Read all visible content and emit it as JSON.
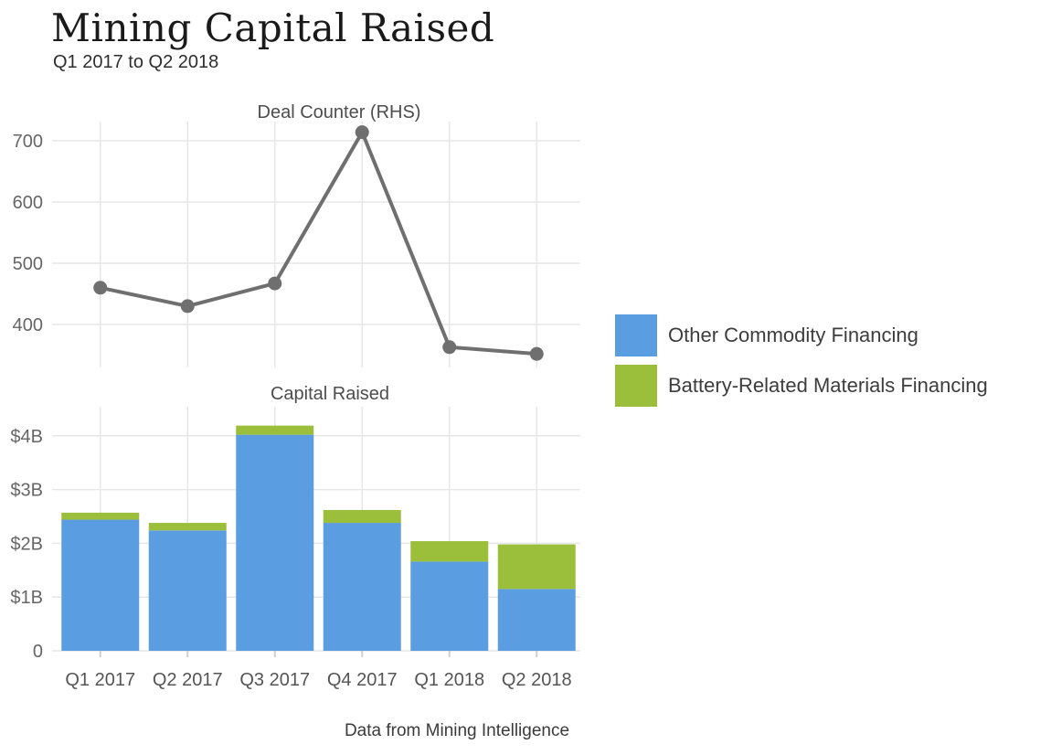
{
  "header": {
    "title": "Mining Capital Raised",
    "subtitle": "Q1 2017 to Q2 2018"
  },
  "caption": "Data from Mining Intelligence",
  "colors": {
    "other_commodity": "#5B9DE1",
    "battery_materials": "#9BBF3B",
    "line_gray": "#6F6F6F",
    "grid_gray": "#E7E7E7",
    "axis_text_gray": "#666666"
  },
  "legend": {
    "items": [
      {
        "label": "Other Commodity Financing",
        "color": "#5B9DE1"
      },
      {
        "label": "Battery-Related Materials Financing",
        "color": "#9BBF3B"
      }
    ],
    "position": "right"
  },
  "chart_data": [
    {
      "type": "line",
      "title": "Deal Counter (RHS)",
      "categories": [
        "Q1 2017",
        "Q2 2017",
        "Q3 2017",
        "Q4 2017",
        "Q1 2018",
        "Q2 2018"
      ],
      "values": [
        460,
        430,
        467,
        714,
        363,
        352
      ],
      "yticks": [
        400,
        500,
        600,
        700
      ],
      "ylim": [
        330,
        730
      ],
      "grid": true,
      "x_labels_shown": false,
      "marker": "circle",
      "line_color": "#6F6F6F"
    },
    {
      "type": "bar",
      "stacked": true,
      "title": "Capital Raised",
      "categories": [
        "Q1 2017",
        "Q2 2017",
        "Q3 2017",
        "Q4 2017",
        "Q1 2018",
        "Q2 2018"
      ],
      "series": [
        {
          "name": "Other Commodity Financing",
          "color": "#5B9DE1",
          "values": [
            2.44,
            2.24,
            4.02,
            2.38,
            1.66,
            1.15
          ]
        },
        {
          "name": "Battery-Related Materials Financing",
          "color": "#9BBF3B",
          "values": [
            0.13,
            0.14,
            0.17,
            0.24,
            0.38,
            0.83
          ]
        }
      ],
      "totals": [
        2.57,
        2.38,
        4.19,
        2.62,
        2.04,
        1.98
      ],
      "unit": "billions USD",
      "yticks": [
        0,
        1,
        2,
        3,
        4
      ],
      "ytick_labels": [
        "0",
        "$1B",
        "$2B",
        "$3B",
        "$4B"
      ],
      "ylim": [
        0,
        4.55
      ],
      "grid": true,
      "x_labels_shown": true
    }
  ]
}
